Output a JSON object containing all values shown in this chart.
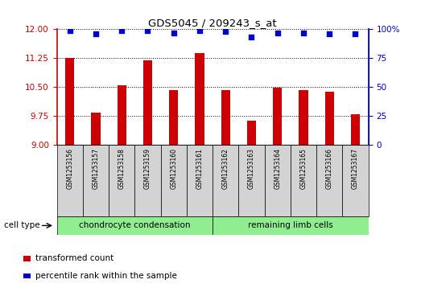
{
  "title": "GDS5045 / 209243_s_at",
  "samples": [
    "GSM1253156",
    "GSM1253157",
    "GSM1253158",
    "GSM1253159",
    "GSM1253160",
    "GSM1253161",
    "GSM1253162",
    "GSM1253163",
    "GSM1253164",
    "GSM1253165",
    "GSM1253166",
    "GSM1253167"
  ],
  "bar_values": [
    11.25,
    9.82,
    10.55,
    11.18,
    10.42,
    11.38,
    10.42,
    9.62,
    10.48,
    10.42,
    10.38,
    9.78
  ],
  "dot_values": [
    99,
    96,
    99,
    99,
    97,
    99,
    98,
    93,
    97,
    97,
    96,
    96
  ],
  "bar_color": "#cc0000",
  "dot_color": "#0000cc",
  "ylim_left": [
    9,
    12
  ],
  "ylim_right": [
    0,
    100
  ],
  "yticks_left": [
    9,
    9.75,
    10.5,
    11.25,
    12
  ],
  "yticks_right": [
    0,
    25,
    50,
    75,
    100
  ],
  "groups": [
    {
      "label": "chondrocyte condensation",
      "start": 0,
      "end": 6,
      "color": "#90EE90"
    },
    {
      "label": "remaining limb cells",
      "start": 6,
      "end": 12,
      "color": "#90EE90"
    }
  ],
  "cell_type_label": "cell type",
  "legend_bar_label": "transformed count",
  "legend_dot_label": "percentile rank within the sample",
  "bar_base": 9,
  "sample_box_color": "#d3d3d3",
  "plot_bg": "#ffffff",
  "bar_width": 0.35,
  "dot_size": 16
}
